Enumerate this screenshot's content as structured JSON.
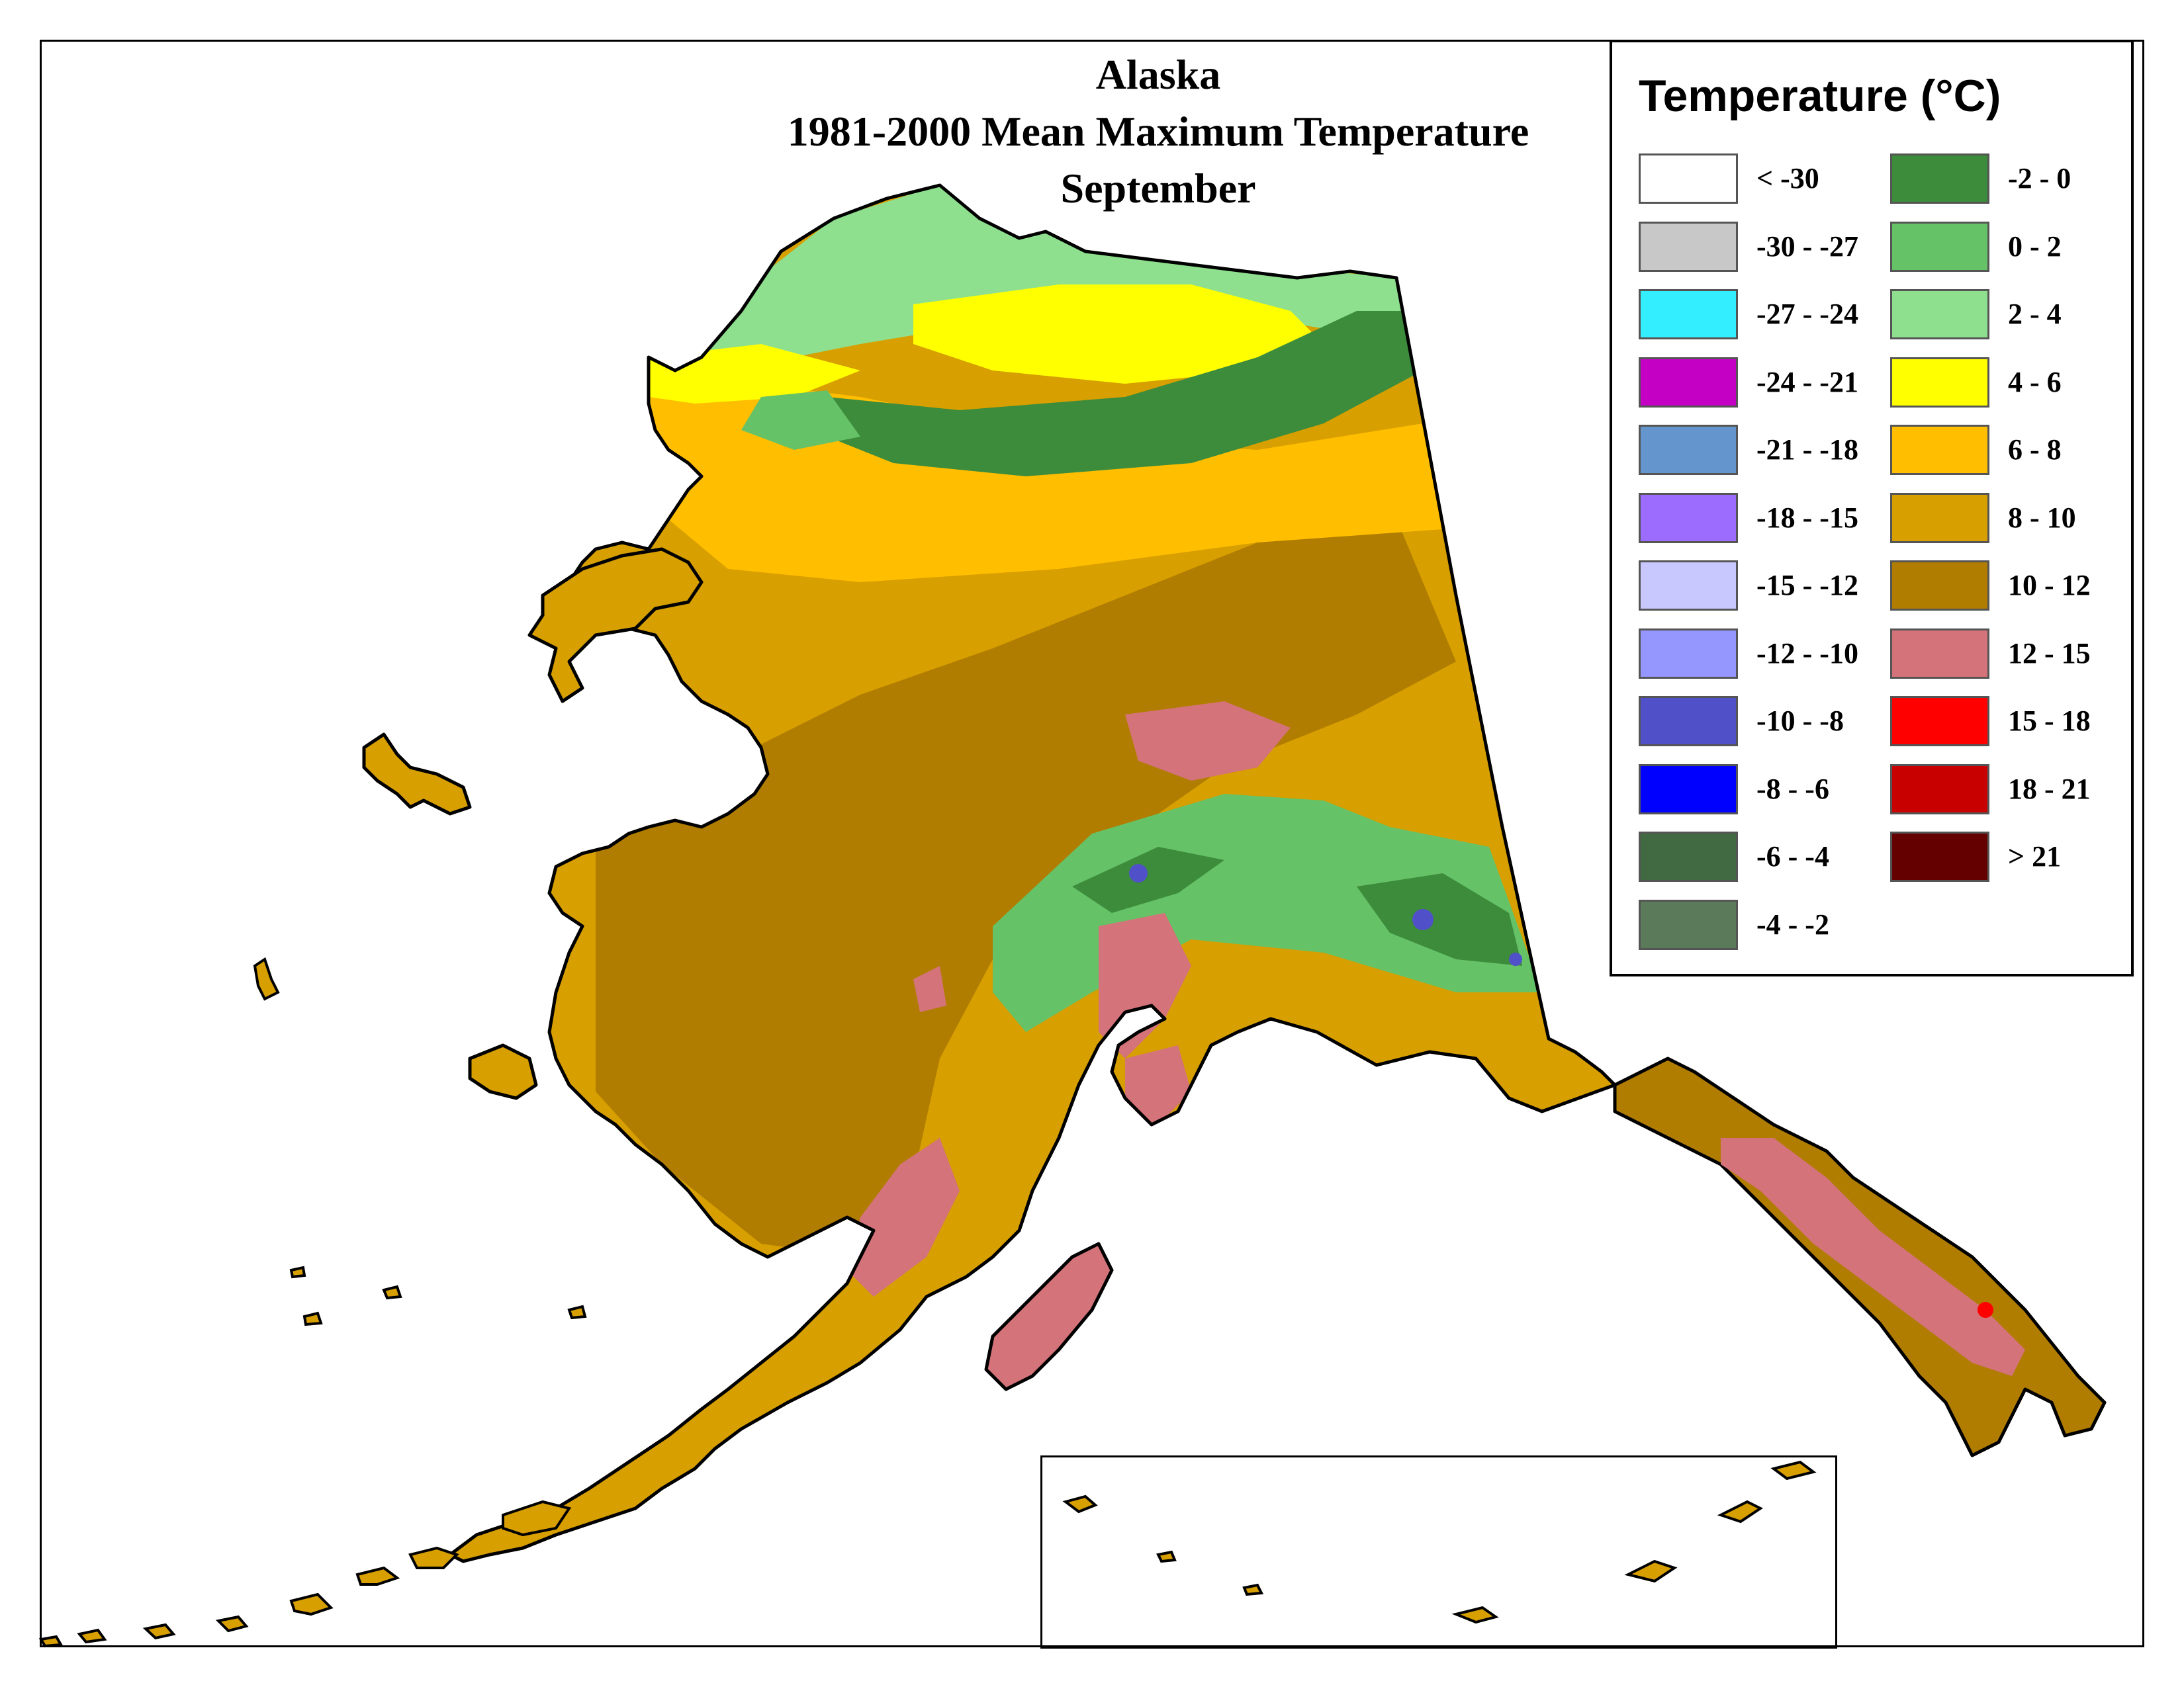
{
  "title": {
    "line1": "Alaska",
    "line2": "1981-2000 Mean Maximum Temperature",
    "line3": "September"
  },
  "legend": {
    "title": "Temperature (°C)",
    "left_column": [
      {
        "label": "< -30",
        "color": "#ffffff"
      },
      {
        "label": "-30 - -27",
        "color": "#c8c8c8"
      },
      {
        "label": "-27 - -24",
        "color": "#33eeff"
      },
      {
        "label": "-24 - -21",
        "color": "#c400c4"
      },
      {
        "label": "-21 - -18",
        "color": "#6495cc"
      },
      {
        "label": "-18 - -15",
        "color": "#9c6cff"
      },
      {
        "label": "-15 - -12",
        "color": "#c8c8ff"
      },
      {
        "label": "-12 - -10",
        "color": "#9696ff"
      },
      {
        "label": "-10 - -8",
        "color": "#5050c8"
      },
      {
        "label": "-8 - -6",
        "color": "#0000ff"
      },
      {
        "label": "-6 - -4",
        "color": "#426a42"
      },
      {
        "label": "-4 - -2",
        "color": "#5a7a5a"
      }
    ],
    "right_column": [
      {
        "label": "-2 - 0",
        "color": "#3c8c3c"
      },
      {
        "label": "0 - 2",
        "color": "#66c266"
      },
      {
        "label": "2 - 4",
        "color": "#8ee08e"
      },
      {
        "label": "4 - 6",
        "color": "#ffff00"
      },
      {
        "label": "6 - 8",
        "color": "#ffbe00"
      },
      {
        "label": "8 - 10",
        "color": "#d79f00"
      },
      {
        "label": "10 - 12",
        "color": "#b17d00"
      },
      {
        "label": "12 - 15",
        "color": "#d4737a"
      },
      {
        "label": "15 - 18",
        "color": "#ff0000"
      },
      {
        "label": "18 - 21",
        "color": "#c80000"
      },
      {
        "label": "> 21",
        "color": "#640000"
      }
    ]
  },
  "map_colors": {
    "outline": "#000000",
    "zone_8_10": "#d79f00",
    "zone_10_12": "#b17d00",
    "zone_6_8": "#ffbe00",
    "zone_4_6": "#ffff00",
    "zone_2_4": "#8ee08e",
    "zone_0_2": "#66c266",
    "zone_neg2_0": "#3c8c3c",
    "zone_12_15": "#d4737a",
    "zone_neg10_neg8": "#5050c8"
  }
}
